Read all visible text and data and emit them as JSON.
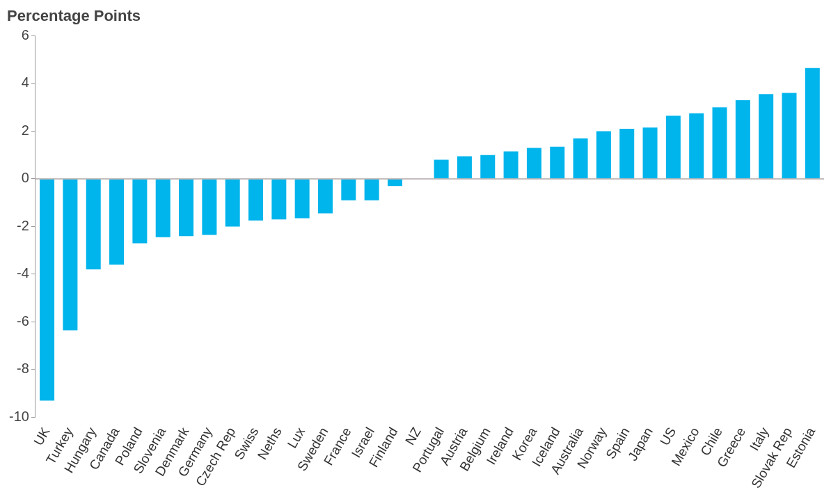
{
  "chart_data": {
    "type": "bar",
    "ylabel": "Percentage Points",
    "categories": [
      "UK",
      "Turkey",
      "Hungary",
      "Canada",
      "Poland",
      "Slovenia",
      "Denmark",
      "Germany",
      "Czech Rep",
      "Swiss",
      "Neths",
      "Lux",
      "Sweden",
      "France",
      "Israel",
      "Finland",
      "NZ",
      "Portugal",
      "Austria",
      "Belgium",
      "Ireland",
      "Korea",
      "Iceland",
      "Australia",
      "Norway",
      "Spain",
      "Japan",
      "US",
      "Mexico",
      "Chile",
      "Greece",
      "Italy",
      "Slovak Rep",
      "Estonia"
    ],
    "values": [
      -9.3,
      -6.35,
      -3.8,
      -3.6,
      -2.7,
      -2.45,
      -2.4,
      -2.35,
      -2.0,
      -1.75,
      -1.7,
      -1.65,
      -1.45,
      -0.9,
      -0.9,
      -0.3,
      0,
      0.8,
      0.95,
      1.0,
      1.15,
      1.3,
      1.35,
      1.7,
      2.0,
      2.1,
      2.15,
      2.65,
      2.75,
      3.0,
      3.3,
      3.55,
      3.6,
      4.65
    ],
    "color": "#00b4ec",
    "ylim": [
      -10,
      6
    ],
    "yticks": [
      -10,
      -8,
      -6,
      -4,
      -2,
      0,
      2,
      4,
      6
    ]
  }
}
